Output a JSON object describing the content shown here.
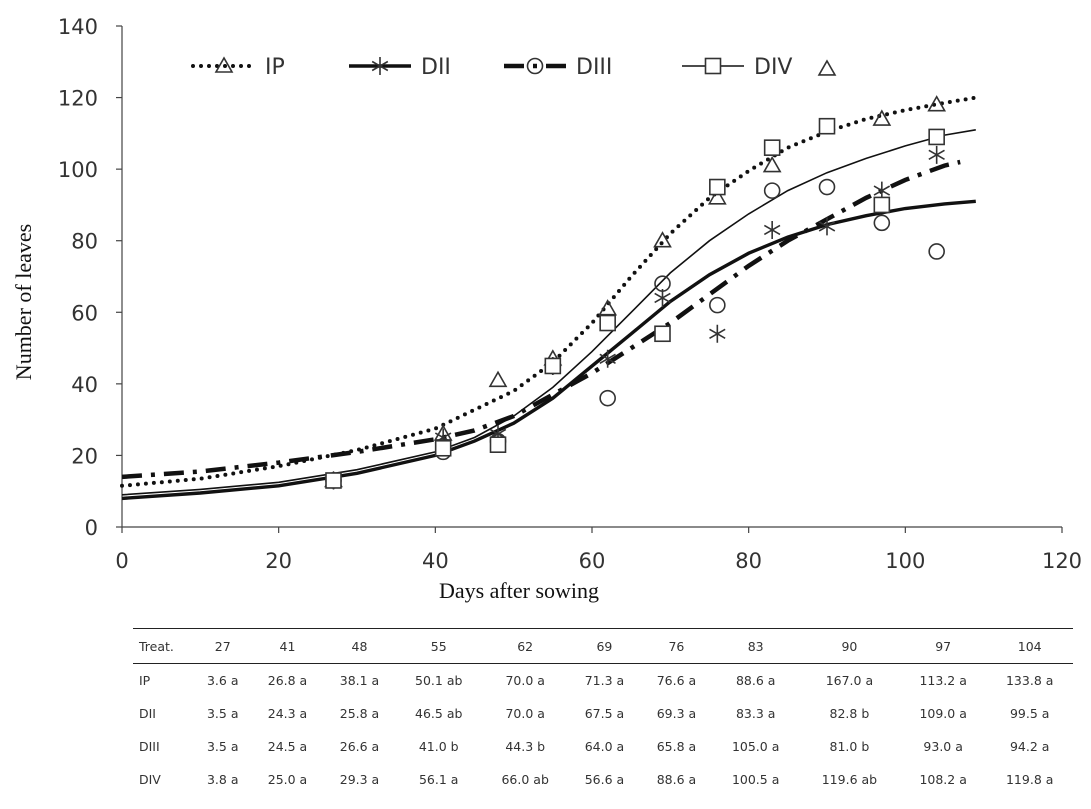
{
  "chart_data": {
    "type": "scatter",
    "xlabel": "Days after sowing",
    "ylabel": "Number of leaves",
    "xlim": [
      0,
      120
    ],
    "ylim": [
      0,
      140
    ],
    "xticks": [
      0,
      20,
      40,
      60,
      80,
      100,
      120
    ],
    "yticks": [
      0,
      20,
      40,
      60,
      80,
      100,
      120,
      140
    ],
    "grid": false,
    "legend_position": "top-left",
    "series": [
      {
        "name": "IP",
        "marker": "triangle",
        "line_style": "dotted",
        "points": [
          [
            27,
            13
          ],
          [
            41,
            26
          ],
          [
            48,
            41
          ],
          [
            55,
            47
          ],
          [
            62,
            61
          ],
          [
            69,
            80
          ],
          [
            76,
            92
          ],
          [
            83,
            101
          ],
          [
            90,
            128
          ],
          [
            97,
            114
          ],
          [
            104,
            118
          ]
        ],
        "fit": [
          [
            0,
            11.5
          ],
          [
            10,
            13.5
          ],
          [
            20,
            17
          ],
          [
            30,
            21.5
          ],
          [
            40,
            27.5
          ],
          [
            50,
            38
          ],
          [
            55,
            46
          ],
          [
            60,
            57
          ],
          [
            65,
            70
          ],
          [
            70,
            82
          ],
          [
            75,
            92
          ],
          [
            80,
            99.5
          ],
          [
            85,
            106
          ],
          [
            90,
            110.5
          ],
          [
            95,
            114
          ],
          [
            100,
            116.5
          ],
          [
            105,
            118.5
          ],
          [
            109,
            120
          ]
        ]
      },
      {
        "name": "DII",
        "marker": "asterisk",
        "line_style": "solid-thick",
        "points": [
          [
            27,
            13
          ],
          [
            41,
            25
          ],
          [
            48,
            26
          ],
          [
            55,
            45
          ],
          [
            62,
            47
          ],
          [
            69,
            64
          ],
          [
            76,
            54
          ],
          [
            83,
            83
          ],
          [
            90,
            84
          ],
          [
            97,
            94
          ],
          [
            104,
            104
          ]
        ],
        "fit": [
          [
            0,
            8
          ],
          [
            10,
            9.5
          ],
          [
            20,
            11.5
          ],
          [
            30,
            15
          ],
          [
            40,
            20
          ],
          [
            45,
            24
          ],
          [
            50,
            29
          ],
          [
            55,
            36
          ],
          [
            60,
            45
          ],
          [
            65,
            54
          ],
          [
            70,
            63
          ],
          [
            75,
            70.5
          ],
          [
            80,
            76.5
          ],
          [
            85,
            81
          ],
          [
            90,
            84.5
          ],
          [
            95,
            87
          ],
          [
            100,
            89
          ],
          [
            105,
            90.3
          ],
          [
            109,
            91
          ]
        ]
      },
      {
        "name": "DIII",
        "marker": "circle",
        "line_style": "dashed",
        "points": [
          [
            27,
            13
          ],
          [
            41,
            21
          ],
          [
            48,
            24
          ],
          [
            55,
            45
          ],
          [
            62,
            36
          ],
          [
            69,
            68
          ],
          [
            76,
            62
          ],
          [
            83,
            94
          ],
          [
            90,
            95
          ],
          [
            97,
            85
          ],
          [
            104,
            77
          ]
        ],
        "fit": [
          [
            0,
            14
          ],
          [
            10,
            15.5
          ],
          [
            20,
            18
          ],
          [
            30,
            21
          ],
          [
            40,
            24.5
          ],
          [
            45,
            27
          ],
          [
            50,
            31
          ],
          [
            55,
            37
          ],
          [
            60,
            43
          ],
          [
            65,
            50
          ],
          [
            70,
            57
          ],
          [
            75,
            65
          ],
          [
            80,
            73
          ],
          [
            85,
            80
          ],
          [
            90,
            86
          ],
          [
            95,
            92
          ],
          [
            100,
            97
          ],
          [
            105,
            101
          ],
          [
            107,
            102
          ]
        ]
      },
      {
        "name": "DIV",
        "marker": "square",
        "line_style": "solid-thin",
        "points": [
          [
            27,
            13
          ],
          [
            41,
            22
          ],
          [
            48,
            23
          ],
          [
            55,
            45
          ],
          [
            62,
            57
          ],
          [
            69,
            54
          ],
          [
            76,
            95
          ],
          [
            83,
            106
          ],
          [
            90,
            112
          ],
          [
            97,
            90
          ],
          [
            104,
            109
          ]
        ],
        "fit": [
          [
            0,
            9
          ],
          [
            10,
            10.5
          ],
          [
            20,
            12.5
          ],
          [
            30,
            16
          ],
          [
            40,
            21
          ],
          [
            45,
            25
          ],
          [
            50,
            31
          ],
          [
            55,
            39
          ],
          [
            60,
            49
          ],
          [
            65,
            60
          ],
          [
            70,
            71
          ],
          [
            75,
            80
          ],
          [
            80,
            87.5
          ],
          [
            85,
            94
          ],
          [
            90,
            99
          ],
          [
            95,
            103
          ],
          [
            100,
            106.5
          ],
          [
            105,
            109.5
          ],
          [
            109,
            111
          ]
        ]
      }
    ]
  },
  "table": {
    "header": [
      "Treat.",
      "27",
      "41",
      "48",
      "55",
      "62",
      "69",
      "76",
      "83",
      "90",
      "97",
      "104"
    ],
    "rows": [
      [
        "IP",
        "3.6 a",
        "26.8 a",
        "38.1 a",
        "50.1 ab",
        "70.0 a",
        "71.3 a",
        "76.6 a",
        "88.6 a",
        "167.0 a",
        "113.2 a",
        "133.8 a"
      ],
      [
        "DII",
        "3.5 a",
        "24.3 a",
        "25.8 a",
        "46.5 ab",
        "70.0 a",
        "67.5 a",
        "69.3 a",
        "83.3 a",
        "82.8 b",
        "109.0 a",
        "99.5 a"
      ],
      [
        "DIII",
        "3.5 a",
        "24.5 a",
        "26.6 a",
        "41.0 b",
        "44.3 b",
        "64.0 a",
        "65.8 a",
        "105.0 a",
        "81.0 b",
        "93.0 a",
        "94.2 a"
      ],
      [
        "DIV",
        "3.8 a",
        "25.0 a",
        "29.3 a",
        "56.1 a",
        "66.0 ab",
        "56.6 a",
        "88.6 a",
        "100.5 a",
        "119.6 ab",
        "108.2 a",
        "119.8 a"
      ]
    ]
  }
}
